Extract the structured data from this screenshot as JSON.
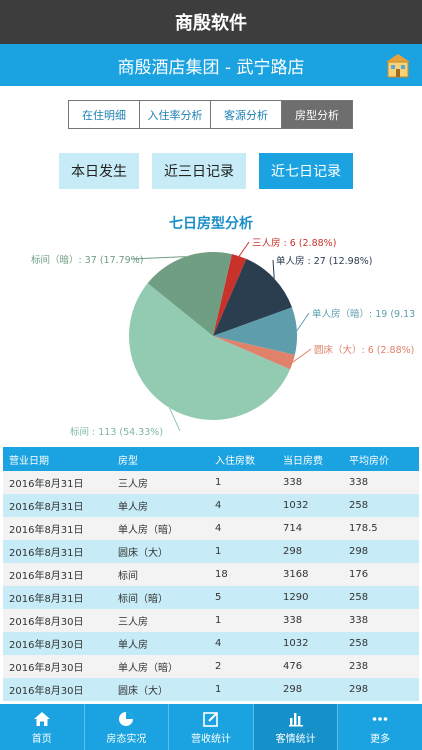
{
  "app": {
    "title": "商殷软件"
  },
  "hotel": {
    "name": "商殷酒店集团 - 武宁路店",
    "icon": "hotel-building-icon"
  },
  "segments": [
    {
      "label": "在住明细",
      "active": false
    },
    {
      "label": "入住率分析",
      "active": false
    },
    {
      "label": "客源分析",
      "active": false
    },
    {
      "label": "房型分析",
      "active": true
    }
  ],
  "periods": [
    {
      "label": "本日发生",
      "active": false
    },
    {
      "label": "近三日记录",
      "active": false
    },
    {
      "label": "近七日记录",
      "active": true
    }
  ],
  "chart_data": {
    "type": "pie",
    "title": "七日房型分析",
    "slices": [
      {
        "name": "三人房",
        "value": 6,
        "pct": "2.88%",
        "color": "#c9322b",
        "label": "三人房 : 6 (2.88%)",
        "label_color": "#c9322b"
      },
      {
        "name": "单人房",
        "value": 27,
        "pct": "12.98%",
        "color": "#2b3e50",
        "label": "单人房 : 27 (12.98%)",
        "label_color": "#2b3e50"
      },
      {
        "name": "单人房（暗）",
        "value": 19,
        "pct": "9.13%",
        "color": "#5e9eac",
        "label": "单人房（暗）: 19 (9.13",
        "label_color": "#5e9eac"
      },
      {
        "name": "圆床（大）",
        "value": 6,
        "pct": "2.88%",
        "color": "#e0826a",
        "label": "圆床（大）: 6 (2.88%)",
        "label_color": "#e0826a"
      },
      {
        "name": "标间",
        "value": 113,
        "pct": "54.33%",
        "color": "#93cab2",
        "label": "标间 : 113 (54.33%)",
        "label_color": "#7fb79f"
      },
      {
        "name": "标间（暗）",
        "value": 37,
        "pct": "17.79%",
        "color": "#6f9e82",
        "label": "标间（暗）: 37 (17.79%)",
        "label_color": "#6f9e82"
      }
    ]
  },
  "table": {
    "headers": [
      "营业日期",
      "房型",
      "入住房数",
      "当日房费",
      "平均房价"
    ],
    "rows": [
      [
        "2016年8月31日",
        "三人房",
        "1",
        "338",
        "338"
      ],
      [
        "2016年8月31日",
        "单人房",
        "4",
        "1032",
        "258"
      ],
      [
        "2016年8月31日",
        "单人房（暗）",
        "4",
        "714",
        "178.5"
      ],
      [
        "2016年8月31日",
        "圆床（大）",
        "1",
        "298",
        "298"
      ],
      [
        "2016年8月31日",
        "标间",
        "18",
        "3168",
        "176"
      ],
      [
        "2016年8月31日",
        "标间（暗）",
        "5",
        "1290",
        "258"
      ],
      [
        "2016年8月30日",
        "三人房",
        "1",
        "338",
        "338"
      ],
      [
        "2016年8月30日",
        "单人房",
        "4",
        "1032",
        "258"
      ],
      [
        "2016年8月30日",
        "单人房（暗）",
        "2",
        "476",
        "238"
      ],
      [
        "2016年8月30日",
        "圆床（大）",
        "1",
        "298",
        "298"
      ]
    ]
  },
  "tabs": [
    {
      "label": "首页",
      "icon": "home-icon",
      "active": false
    },
    {
      "label": "房态实况",
      "icon": "pie-chart-icon",
      "active": false
    },
    {
      "label": "营收统计",
      "icon": "edit-icon",
      "active": false
    },
    {
      "label": "客情统计",
      "icon": "bar-chart-icon",
      "active": true
    },
    {
      "label": "更多",
      "icon": "more-icon",
      "active": false
    }
  ]
}
